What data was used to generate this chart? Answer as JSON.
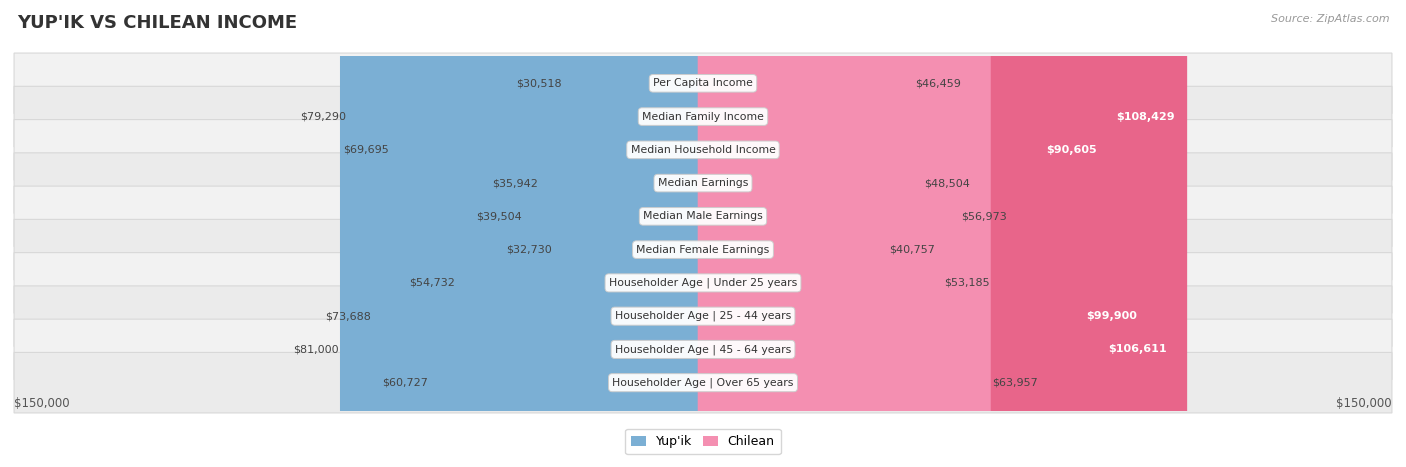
{
  "title": "YUP'IK VS CHILEAN INCOME",
  "source": "Source: ZipAtlas.com",
  "categories": [
    "Per Capita Income",
    "Median Family Income",
    "Median Household Income",
    "Median Earnings",
    "Median Male Earnings",
    "Median Female Earnings",
    "Householder Age | Under 25 years",
    "Householder Age | 25 - 44 years",
    "Householder Age | 45 - 64 years",
    "Householder Age | Over 65 years"
  ],
  "yupik_values": [
    30518,
    79290,
    69695,
    35942,
    39504,
    32730,
    54732,
    73688,
    81000,
    60727
  ],
  "chilean_values": [
    46459,
    108429,
    90605,
    48504,
    56973,
    40757,
    53185,
    99900,
    106611,
    63957
  ],
  "yupik_labels": [
    "$30,518",
    "$79,290",
    "$69,695",
    "$35,942",
    "$39,504",
    "$32,730",
    "$54,732",
    "$73,688",
    "$81,000",
    "$60,727"
  ],
  "chilean_labels": [
    "$46,459",
    "$108,429",
    "$90,605",
    "$48,504",
    "$56,973",
    "$40,757",
    "$53,185",
    "$99,900",
    "$106,611",
    "$63,957"
  ],
  "yupik_color": "#7BAFD4",
  "chilean_color": "#F48FB1",
  "chilean_strong_color": "#E8658A",
  "max_value": 150000,
  "axis_label_left": "$150,000",
  "axis_label_right": "$150,000",
  "legend_yupik": "Yup'ik",
  "legend_chilean": "Chilean",
  "chilean_highlight": [
    1,
    2,
    7,
    8
  ],
  "row_colors": [
    "#f0f0f0",
    "#e8e8e8"
  ],
  "bg_color": "#ffffff"
}
